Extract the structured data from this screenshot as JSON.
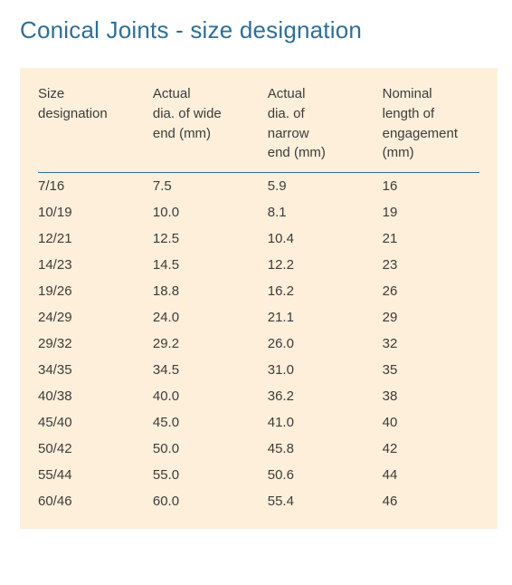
{
  "title": "Conical Joints - size designation",
  "styles": {
    "title_color": "#2f6e97",
    "title_fontsize": 26,
    "table_bg": "#fdefda",
    "header_text_color": "#3c3c3c",
    "body_text_color": "#3c3c3c",
    "rule_color": "#2f6e97",
    "body_fontsize": 15,
    "header_fontsize": 15
  },
  "table": {
    "type": "table",
    "columns": [
      {
        "key": "size",
        "label_lines": [
          "Size",
          "designation"
        ]
      },
      {
        "key": "wide",
        "label_lines": [
          "Actual",
          "dia. of wide",
          "end (mm)"
        ]
      },
      {
        "key": "narrow",
        "label_lines": [
          "Actual",
          "dia. of",
          "narrow",
          "end (mm)"
        ]
      },
      {
        "key": "nominal",
        "label_lines": [
          "Nominal",
          "length of",
          "engagement",
          "(mm)"
        ]
      }
    ],
    "rows": [
      {
        "size": "7/16",
        "wide": "7.5",
        "narrow": "5.9",
        "nominal": "16"
      },
      {
        "size": "10/19",
        "wide": "10.0",
        "narrow": "8.1",
        "nominal": "19"
      },
      {
        "size": "12/21",
        "wide": "12.5",
        "narrow": "10.4",
        "nominal": "21"
      },
      {
        "size": "14/23",
        "wide": "14.5",
        "narrow": "12.2",
        "nominal": "23"
      },
      {
        "size": "19/26",
        "wide": "18.8",
        "narrow": "16.2",
        "nominal": "26"
      },
      {
        "size": "24/29",
        "wide": "24.0",
        "narrow": "21.1",
        "nominal": "29"
      },
      {
        "size": "29/32",
        "wide": "29.2",
        "narrow": "26.0",
        "nominal": "32"
      },
      {
        "size": "34/35",
        "wide": "34.5",
        "narrow": "31.0",
        "nominal": "35"
      },
      {
        "size": "40/38",
        "wide": "40.0",
        "narrow": "36.2",
        "nominal": "38"
      },
      {
        "size": "45/40",
        "wide": "45.0",
        "narrow": "41.0",
        "nominal": "40"
      },
      {
        "size": "50/42",
        "wide": "50.0",
        "narrow": "45.8",
        "nominal": "42"
      },
      {
        "size": "55/44",
        "wide": "55.0",
        "narrow": "50.6",
        "nominal": "44"
      },
      {
        "size": "60/46",
        "wide": "60.0",
        "narrow": "55.4",
        "nominal": "46"
      }
    ]
  }
}
